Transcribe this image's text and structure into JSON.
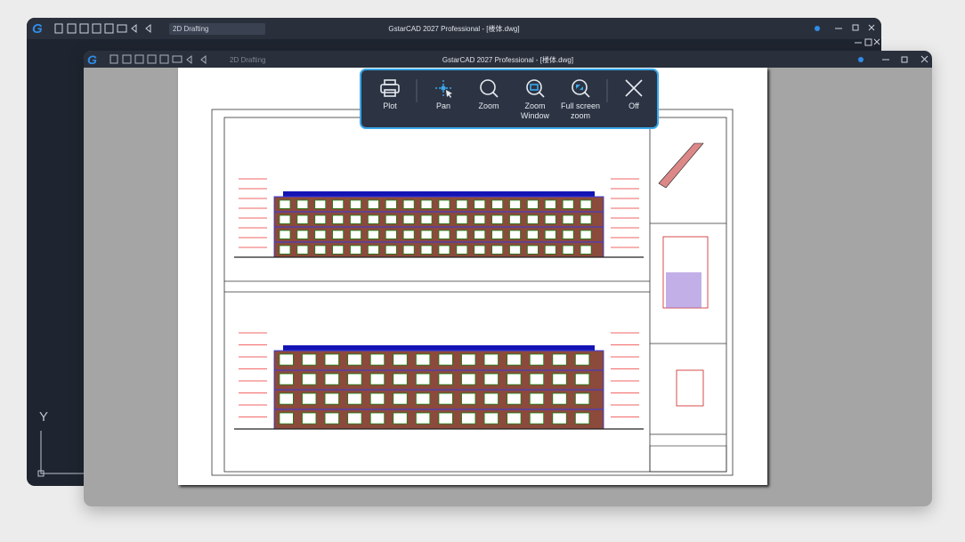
{
  "back_window": {
    "title": "GstarCAD 2027 Professional - [楼体.dwg]",
    "workspace": "2D Drafting",
    "ucs_label": "Y"
  },
  "front_window": {
    "title": "GstarCAD 2027 Professional - [楼体.dwg]",
    "workspace": "2D Drafting"
  },
  "toolbar": {
    "buttons": [
      {
        "label": "Plot"
      },
      {
        "label": "Pan"
      },
      {
        "label": "Zoom"
      },
      {
        "label": "Zoom Window"
      },
      {
        "label": "Full screen zoom"
      },
      {
        "label": "Off"
      }
    ]
  }
}
